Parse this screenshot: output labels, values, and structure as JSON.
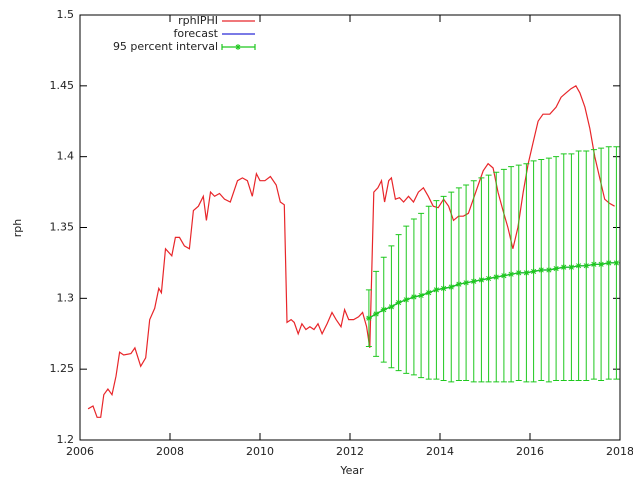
{
  "chart_data": {
    "type": "line",
    "xlabel": "Year",
    "ylabel": "rph",
    "xlim": [
      2006,
      2018
    ],
    "xticks": [
      2006,
      2008,
      2010,
      2012,
      2014,
      2016,
      2018
    ],
    "ylim": [
      1.2,
      1.5
    ],
    "yticks": [
      1.2,
      1.25,
      1.3,
      1.35,
      1.4,
      1.45,
      1.5
    ],
    "legend": "upper-left",
    "series": [
      {
        "name": "rphIPHI",
        "color": "#e8262a",
        "x": [
          2006.18,
          2006.29,
          2006.38,
          2006.46,
          2006.53,
          2006.62,
          2006.71,
          2006.8,
          2006.88,
          2006.97,
          2007.13,
          2007.22,
          2007.35,
          2007.46,
          2007.55,
          2007.66,
          2007.75,
          2007.81,
          2007.9,
          2008.04,
          2008.12,
          2008.21,
          2008.32,
          2008.43,
          2008.52,
          2008.63,
          2008.74,
          2008.81,
          2008.9,
          2008.99,
          2009.1,
          2009.21,
          2009.34,
          2009.5,
          2009.61,
          2009.72,
          2009.83,
          2009.92,
          2010.0,
          2010.11,
          2010.23,
          2010.36,
          2010.45,
          2010.54,
          2010.6,
          2010.69,
          2010.76,
          2010.85,
          2010.93,
          2011.02,
          2011.11,
          2011.2,
          2011.29,
          2011.38,
          2011.49,
          2011.6,
          2011.69,
          2011.8,
          2011.88,
          2011.97,
          2012.08,
          2012.19,
          2012.28,
          2012.37,
          2012.44,
          2012.53,
          2012.62,
          2012.7,
          2012.77,
          2012.86,
          2012.92,
          2013.01,
          2013.1,
          2013.19,
          2013.3,
          2013.41,
          2013.52,
          2013.63,
          2013.74,
          2013.85,
          2013.96,
          2014.08,
          2014.19,
          2014.3,
          2014.41,
          2014.52,
          2014.63,
          2014.74,
          2014.85,
          2014.96,
          2015.07,
          2015.18,
          2015.29,
          2015.4,
          2015.51,
          2015.62,
          2015.73,
          2015.85,
          2015.96,
          2016.07,
          2016.18,
          2016.29,
          2016.44,
          2016.58,
          2016.69,
          2016.8,
          2016.91,
          2017.02,
          2017.11,
          2017.22,
          2017.33,
          2017.44,
          2017.55,
          2017.66,
          2017.77,
          2017.88
        ],
        "values": [
          1.222,
          1.224,
          1.216,
          1.216,
          1.232,
          1.236,
          1.232,
          1.245,
          1.262,
          1.26,
          1.261,
          1.265,
          1.252,
          1.258,
          1.285,
          1.293,
          1.307,
          1.304,
          1.335,
          1.33,
          1.343,
          1.343,
          1.337,
          1.335,
          1.362,
          1.365,
          1.372,
          1.355,
          1.375,
          1.372,
          1.374,
          1.37,
          1.368,
          1.383,
          1.385,
          1.383,
          1.372,
          1.388,
          1.383,
          1.383,
          1.386,
          1.38,
          1.368,
          1.366,
          1.283,
          1.285,
          1.283,
          1.275,
          1.282,
          1.278,
          1.28,
          1.278,
          1.282,
          1.275,
          1.282,
          1.29,
          1.285,
          1.28,
          1.292,
          1.285,
          1.285,
          1.287,
          1.29,
          1.28,
          1.265,
          1.375,
          1.378,
          1.383,
          1.368,
          1.383,
          1.385,
          1.37,
          1.371,
          1.368,
          1.372,
          1.368,
          1.375,
          1.378,
          1.372,
          1.365,
          1.364,
          1.37,
          1.365,
          1.355,
          1.358,
          1.358,
          1.36,
          1.37,
          1.38,
          1.39,
          1.395,
          1.392,
          1.375,
          1.362,
          1.35,
          1.335,
          1.35,
          1.375,
          1.395,
          1.41,
          1.425,
          1.43,
          1.43,
          1.435,
          1.442,
          1.445,
          1.448,
          1.45,
          1.445,
          1.435,
          1.42,
          1.4,
          1.385,
          1.37,
          1.367,
          1.365
        ]
      },
      {
        "name": "forecast",
        "color": "#2b2bd6",
        "x": [
          2012.42,
          2012.58,
          2012.75,
          2012.92,
          2013.08,
          2013.25,
          2013.42,
          2013.58,
          2013.75,
          2013.92,
          2014.08,
          2014.25,
          2014.42,
          2014.58,
          2014.75,
          2014.92,
          2015.08,
          2015.25,
          2015.42,
          2015.58,
          2015.75,
          2015.92,
          2016.08,
          2016.25,
          2016.42,
          2016.58,
          2016.75,
          2016.92,
          2017.08,
          2017.25,
          2017.42,
          2017.58,
          2017.75,
          2017.92
        ],
        "values": [
          1.286,
          1.289,
          1.292,
          1.294,
          1.297,
          1.299,
          1.301,
          1.302,
          1.304,
          1.306,
          1.307,
          1.308,
          1.31,
          1.311,
          1.312,
          1.313,
          1.314,
          1.315,
          1.316,
          1.317,
          1.318,
          1.318,
          1.319,
          1.32,
          1.32,
          1.321,
          1.322,
          1.322,
          1.323,
          1.323,
          1.324,
          1.324,
          1.325,
          1.325
        ]
      },
      {
        "name": "95 percent interval",
        "color": "#1ec81e",
        "x": [
          2012.42,
          2012.58,
          2012.75,
          2012.92,
          2013.08,
          2013.25,
          2013.42,
          2013.58,
          2013.75,
          2013.92,
          2014.08,
          2014.25,
          2014.42,
          2014.58,
          2014.75,
          2014.92,
          2015.08,
          2015.25,
          2015.42,
          2015.58,
          2015.75,
          2015.92,
          2016.08,
          2016.25,
          2016.42,
          2016.58,
          2016.75,
          2016.92,
          2017.08,
          2017.25,
          2017.42,
          2017.58,
          2017.75,
          2017.92
        ],
        "values": [
          1.286,
          1.289,
          1.292,
          1.294,
          1.297,
          1.299,
          1.301,
          1.302,
          1.304,
          1.306,
          1.307,
          1.308,
          1.31,
          1.311,
          1.312,
          1.313,
          1.314,
          1.315,
          1.316,
          1.317,
          1.318,
          1.318,
          1.319,
          1.32,
          1.32,
          1.321,
          1.322,
          1.322,
          1.323,
          1.323,
          1.324,
          1.324,
          1.325,
          1.325
        ],
        "errors": [
          0.02,
          0.03,
          0.037,
          0.043,
          0.048,
          0.052,
          0.055,
          0.058,
          0.061,
          0.063,
          0.065,
          0.067,
          0.068,
          0.069,
          0.071,
          0.072,
          0.073,
          0.074,
          0.075,
          0.076,
          0.076,
          0.077,
          0.078,
          0.078,
          0.079,
          0.079,
          0.08,
          0.08,
          0.081,
          0.081,
          0.081,
          0.082,
          0.082,
          0.082
        ]
      }
    ]
  }
}
